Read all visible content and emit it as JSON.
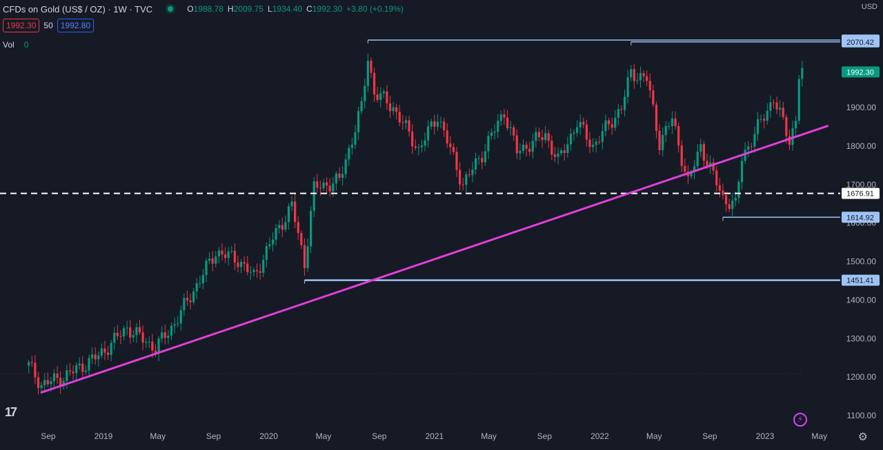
{
  "header": {
    "title": "CFDs on Gold (US$ / OZ) · 1W · TVC",
    "ohlc": {
      "o_label": "O",
      "o": "1988.78",
      "h_label": "H",
      "h": "2009.75",
      "l_label": "L",
      "l": "1934.40",
      "c_label": "C",
      "c": "1992.30",
      "change": "+3.80 (+0.19%)"
    },
    "sell_price": "1992.30",
    "spread": "50",
    "buy_price": "1992.80",
    "vol_label": "Vol",
    "vol_value": "0"
  },
  "axis": {
    "currency": "USD"
  },
  "chart_data": {
    "type": "candlestick",
    "symbol": "CFDs on Gold (US$ / OZ)",
    "interval": "1W",
    "y_ticks": [
      1100,
      1200,
      1300,
      1400,
      1500,
      1600,
      1700,
      1800,
      1900
    ],
    "y_tick_labels": [
      "1100.00",
      "1200.00",
      "1300.00",
      "1400.00",
      "1500.00",
      "1600.00",
      "1700.00",
      "1800.00",
      "1900.00"
    ],
    "x_ticks": [
      "Sep",
      "2019",
      "May",
      "Sep",
      "2020",
      "May",
      "Sep",
      "2021",
      "May",
      "Sep",
      "2022",
      "May",
      "Sep",
      "2023",
      "May"
    ],
    "x_tick_dates": [
      "2018-09-01",
      "2019-01-01",
      "2019-05-01",
      "2019-09-01",
      "2020-01-01",
      "2020-05-01",
      "2020-09-01",
      "2021-01-01",
      "2021-05-01",
      "2021-09-01",
      "2022-01-01",
      "2022-05-01",
      "2022-09-01",
      "2023-01-01",
      "2023-05-01"
    ],
    "price_path": [
      [
        "2018-07-20",
        1230
      ],
      [
        "2018-08-17",
        1180
      ],
      [
        "2018-10-05",
        1200
      ],
      [
        "2018-12-21",
        1255
      ],
      [
        "2019-02-22",
        1328
      ],
      [
        "2019-04-26",
        1275
      ],
      [
        "2019-06-07",
        1340
      ],
      [
        "2019-07-19",
        1425
      ],
      [
        "2019-09-06",
        1525
      ],
      [
        "2019-10-25",
        1505
      ],
      [
        "2019-11-29",
        1460
      ],
      [
        "2020-01-10",
        1560
      ],
      [
        "2020-02-21",
        1645
      ],
      [
        "2020-03-20",
        1495
      ],
      [
        "2020-04-10",
        1690
      ],
      [
        "2020-06-05",
        1710
      ],
      [
        "2020-07-24",
        1900
      ],
      [
        "2020-08-07",
        2030
      ],
      [
        "2020-08-21",
        1940
      ],
      [
        "2020-10-02",
        1900
      ],
      [
        "2020-11-27",
        1790
      ],
      [
        "2021-01-08",
        1880
      ],
      [
        "2021-03-05",
        1700
      ],
      [
        "2021-04-16",
        1780
      ],
      [
        "2021-06-04",
        1890
      ],
      [
        "2021-07-02",
        1785
      ],
      [
        "2021-09-03",
        1830
      ],
      [
        "2021-10-01",
        1760
      ],
      [
        "2021-11-12",
        1860
      ],
      [
        "2021-12-17",
        1800
      ],
      [
        "2022-02-18",
        1900
      ],
      [
        "2022-03-11",
        1990
      ],
      [
        "2022-04-15",
        1975
      ],
      [
        "2022-05-13",
        1810
      ],
      [
        "2022-06-10",
        1870
      ],
      [
        "2022-07-15",
        1705
      ],
      [
        "2022-08-12",
        1800
      ],
      [
        "2022-09-30",
        1665
      ],
      [
        "2022-10-28",
        1645
      ],
      [
        "2022-11-11",
        1770
      ],
      [
        "2023-01-20",
        1925
      ],
      [
        "2023-02-24",
        1815
      ],
      [
        "2023-03-10",
        1868
      ],
      [
        "2023-03-17",
        1985
      ],
      [
        "2023-03-24",
        1992.3
      ]
    ],
    "horizontal_lines": [
      {
        "price": 2075.14,
        "label": "2075.14",
        "from": "2020-08-07"
      },
      {
        "price": 2070.42,
        "label": "2070.42",
        "from": "2022-03-11"
      },
      {
        "price": 1676.91,
        "label": "1676.91",
        "style": "dashed",
        "color": "#ffffff"
      },
      {
        "price": 1614.92,
        "label": "1614.92",
        "from": "2022-09-30"
      },
      {
        "price": 1451.41,
        "label": "1451.41",
        "from": "2020-03-20"
      }
    ],
    "trendline": {
      "from": [
        "2018-08-17",
        1160
      ],
      "to": [
        "2023-05-19",
        1852
      ],
      "color": "#e040d8"
    },
    "last_price": {
      "price": 1992.3,
      "label": "1992.30",
      "color": "#089981"
    },
    "grid": false
  }
}
